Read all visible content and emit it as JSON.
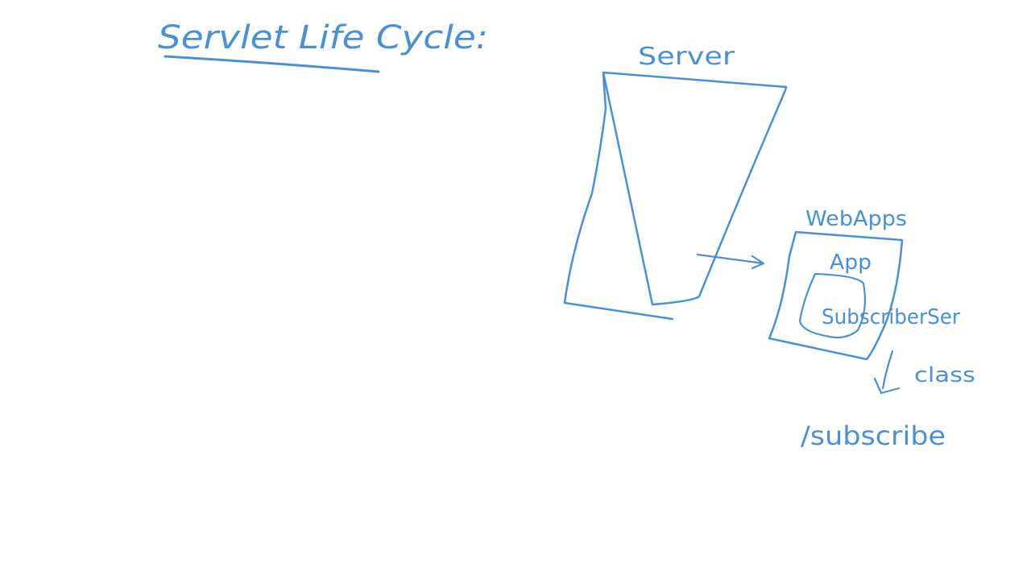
{
  "whiteboard": {
    "ink_color": "#4a90d9",
    "title": "Servlet Life Cycle:",
    "labels": {
      "server": "Server",
      "webapps": "WebApps",
      "app": "App",
      "subscriber": "SubscriberSer",
      "class": "class",
      "path": "/subscribe"
    }
  }
}
